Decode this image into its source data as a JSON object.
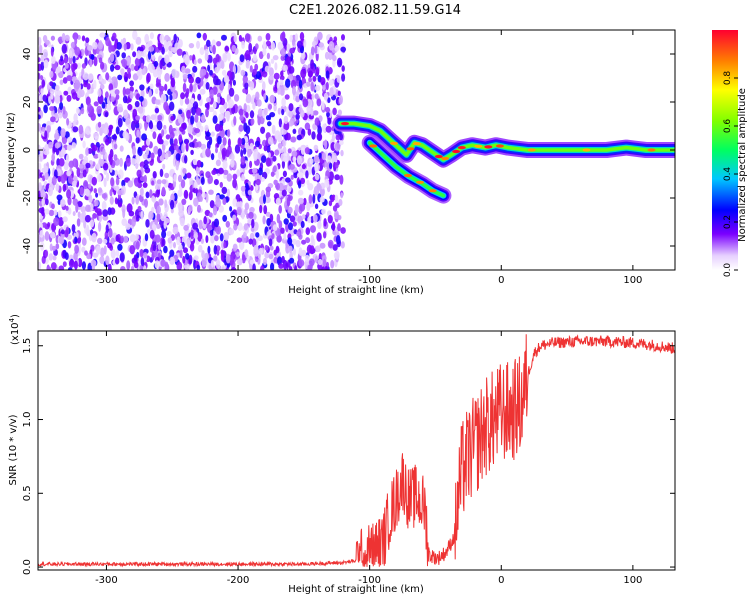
{
  "title": "C2E1.2026.082.11.59.G14",
  "colors": {
    "snr_line": "#ee3333",
    "background": "#ffffff",
    "axis": "#000000"
  },
  "chart_data": [
    {
      "type": "heatmap",
      "xlabel": "Height of straight line (km)",
      "ylabel": "Frequency (Hz)",
      "xlim": [
        -352,
        132
      ],
      "ylim": [
        -50,
        50
      ],
      "xticks": [
        "-300",
        "-200",
        "-100",
        "0",
        "100"
      ],
      "yticks": [
        "-40",
        "-20",
        "0",
        "20",
        "40"
      ],
      "colorbar": {
        "label": "Normalized spectral amplitude",
        "range": [
          0,
          1
        ],
        "ticks": [
          "0.0",
          "0.2",
          "0.4",
          "0.6",
          "0.8"
        ]
      },
      "noise_region": {
        "x_range": [
          -352,
          -120
        ],
        "freq_range": [
          -50,
          48
        ]
      },
      "signal_ridge": [
        {
          "x": -122,
          "f": 11
        },
        {
          "x": -112,
          "f": 11
        },
        {
          "x": -100,
          "f": 10
        },
        {
          "x": -92,
          "f": 8
        },
        {
          "x": -84,
          "f": 4
        },
        {
          "x": -78,
          "f": 1
        },
        {
          "x": -72,
          "f": -2
        },
        {
          "x": -66,
          "f": 3
        },
        {
          "x": -60,
          "f": 2
        },
        {
          "x": -52,
          "f": -1
        },
        {
          "x": -44,
          "f": -4
        },
        {
          "x": -38,
          "f": -2
        },
        {
          "x": -30,
          "f": 1
        },
        {
          "x": -22,
          "f": 2
        },
        {
          "x": -12,
          "f": 1
        },
        {
          "x": -4,
          "f": 2
        },
        {
          "x": 5,
          "f": 1
        },
        {
          "x": 20,
          "f": 0
        },
        {
          "x": 40,
          "f": 0
        },
        {
          "x": 60,
          "f": 0
        },
        {
          "x": 80,
          "f": 0
        },
        {
          "x": 95,
          "f": 1
        },
        {
          "x": 110,
          "f": 0
        },
        {
          "x": 132,
          "f": 0
        }
      ],
      "secondary_branch": [
        {
          "x": -100,
          "f": 3
        },
        {
          "x": -90,
          "f": -2
        },
        {
          "x": -80,
          "f": -7
        },
        {
          "x": -70,
          "f": -11
        },
        {
          "x": -60,
          "f": -14
        },
        {
          "x": -52,
          "f": -17
        },
        {
          "x": -44,
          "f": -19
        }
      ]
    },
    {
      "type": "line",
      "xlabel": "Height of straight line (km)",
      "ylabel": "SNR (10 * v/v)",
      "y_multiplier": "(x10",
      "y_multiplier_exp": "4",
      "y_multiplier_close": ")",
      "xlim": [
        -352,
        132
      ],
      "ylim": [
        -0.02,
        1.6
      ],
      "xticks": [
        "-300",
        "-200",
        "-100",
        "0",
        "100"
      ],
      "yticks": [
        "0.0",
        "0.5",
        "1.0",
        "1.5"
      ],
      "series": [
        {
          "points": [
            {
              "x": -352,
              "y": 0.02
            },
            {
              "x": -300,
              "y": 0.02
            },
            {
              "x": -250,
              "y": 0.02
            },
            {
              "x": -200,
              "y": 0.02
            },
            {
              "x": -150,
              "y": 0.02
            },
            {
              "x": -120,
              "y": 0.03
            },
            {
              "x": -105,
              "y": 0.05
            },
            {
              "x": -95,
              "y": 0.12
            },
            {
              "x": -90,
              "y": 0.15
            },
            {
              "x": -85,
              "y": 0.35
            },
            {
              "x": -80,
              "y": 0.45
            },
            {
              "x": -75,
              "y": 0.6
            },
            {
              "x": -70,
              "y": 0.45
            },
            {
              "x": -65,
              "y": 0.48
            },
            {
              "x": -58,
              "y": 0.4
            },
            {
              "x": -55,
              "y": 0.08
            },
            {
              "x": -48,
              "y": 0.06
            },
            {
              "x": -42,
              "y": 0.1
            },
            {
              "x": -36,
              "y": 0.2
            },
            {
              "x": -30,
              "y": 0.65
            },
            {
              "x": -25,
              "y": 0.75
            },
            {
              "x": -18,
              "y": 0.85
            },
            {
              "x": -12,
              "y": 0.95
            },
            {
              "x": -5,
              "y": 1.0
            },
            {
              "x": 0,
              "y": 1.05
            },
            {
              "x": 8,
              "y": 1.05
            },
            {
              "x": 15,
              "y": 1.1
            },
            {
              "x": 20,
              "y": 1.3
            },
            {
              "x": 25,
              "y": 1.45
            },
            {
              "x": 30,
              "y": 1.5
            },
            {
              "x": 40,
              "y": 1.52
            },
            {
              "x": 60,
              "y": 1.53
            },
            {
              "x": 80,
              "y": 1.53
            },
            {
              "x": 100,
              "y": 1.52
            },
            {
              "x": 120,
              "y": 1.5
            },
            {
              "x": 132,
              "y": 1.48
            }
          ]
        }
      ]
    }
  ]
}
